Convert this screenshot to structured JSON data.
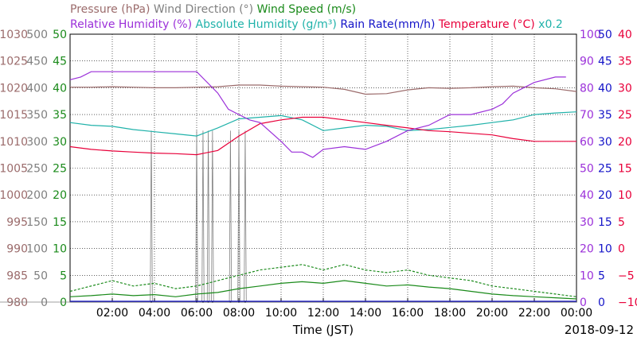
{
  "chart_data": {
    "type": "line",
    "date": "2018-09-12",
    "xlabel": "Time (JST)",
    "x_ticks": [
      "02:00",
      "04:00",
      "06:00",
      "08:00",
      "10:00",
      "12:00",
      "14:00",
      "16:00",
      "18:00",
      "20:00",
      "22:00",
      "00:00"
    ],
    "xlim_hours": [
      0,
      24
    ],
    "grid": true,
    "legend_line1": [
      {
        "label": "Pressure (hPa)",
        "color": "#9b6b6b"
      },
      {
        "label": "Wind Direction (°)",
        "color": "#808080"
      },
      {
        "label": "Wind Speed (m/s)",
        "color": "#1a8a1a"
      }
    ],
    "legend_line2": [
      {
        "label": "Relative Humidity (%)",
        "color": "#9b30d9"
      },
      {
        "label": "Absolute Humidity (g/m³)",
        "color": "#20b2aa"
      },
      {
        "label": "Rain Rate(mm/h)",
        "color": "#1414c8"
      },
      {
        "label": "Temperature (°C)",
        "color": "#e8003a"
      },
      {
        "label": "x0.2",
        "color": "#20b2aa"
      }
    ],
    "axes": [
      {
        "name": "pressure",
        "color": "#9b6b6b",
        "side": "left",
        "ticks": [
          "980",
          "985",
          "990",
          "995",
          "1000",
          "1005",
          "1010",
          "1015",
          "1020",
          "1025",
          "1030"
        ]
      },
      {
        "name": "wind-direction",
        "color": "#808080",
        "side": "left",
        "ticks": [
          "0",
          "50",
          "100",
          "150",
          "200",
          "250",
          "300",
          "350",
          "400",
          "450",
          "500"
        ]
      },
      {
        "name": "wind-speed",
        "color": "#1a8a1a",
        "side": "left",
        "ticks": [
          "0",
          "5",
          "10",
          "15",
          "20",
          "25",
          "30",
          "35",
          "40",
          "45",
          "50"
        ]
      },
      {
        "name": "relative-humidity",
        "color": "#9b30d9",
        "side": "right",
        "ticks": [
          "0",
          "10",
          "20",
          "30",
          "40",
          "50",
          "60",
          "70",
          "80",
          "90",
          "100"
        ]
      },
      {
        "name": "absolute-humidity",
        "color": "#1414c8",
        "side": "right",
        "ticks": [
          "0",
          "5",
          "10",
          "15",
          "20",
          "25",
          "30",
          "35",
          "40",
          "45",
          "50"
        ]
      },
      {
        "name": "temperature",
        "color": "#e8003a",
        "side": "right",
        "ticks": [
          "−10",
          "−5",
          "0",
          "5",
          "10",
          "15",
          "20",
          "25",
          "30",
          "35",
          "40"
        ]
      }
    ],
    "series": [
      {
        "name": "Pressure (hPa)",
        "color": "#9b6b6b",
        "axis": "wd",
        "x": [
          0,
          1,
          2,
          3,
          4,
          5,
          6,
          7,
          8,
          9,
          10,
          11,
          12,
          13,
          14,
          15,
          16,
          17,
          18,
          19,
          20,
          21,
          22,
          23,
          24
        ],
        "y": [
          401,
          401,
          402,
          401,
          400,
          400,
          401,
          402,
          405,
          405,
          403,
          402,
          401,
          397,
          388,
          389,
          396,
          400,
          399,
          400,
          402,
          403,
          400,
          398,
          393
        ]
      },
      {
        "name": "Wind Speed (m/s)",
        "color": "#1a8a1a",
        "axis": "wd",
        "dash": true,
        "x": [
          0,
          1,
          2,
          3,
          4,
          5,
          6,
          7,
          8,
          9,
          10,
          11,
          12,
          13,
          14,
          15,
          16,
          17,
          18,
          19,
          20,
          21,
          22,
          23,
          24
        ],
        "y": [
          20,
          30,
          40,
          30,
          35,
          25,
          30,
          40,
          50,
          60,
          65,
          70,
          60,
          70,
          60,
          55,
          60,
          50,
          45,
          40,
          30,
          25,
          20,
          15,
          10
        ]
      },
      {
        "name": "Wind Speed avg (m/s)",
        "color": "#1a8a1a",
        "axis": "wd",
        "x": [
          0,
          1,
          2,
          3,
          4,
          5,
          6,
          7,
          8,
          9,
          10,
          11,
          12,
          13,
          14,
          15,
          16,
          17,
          18,
          19,
          20,
          21,
          22,
          23,
          24
        ],
        "y": [
          10,
          12,
          15,
          12,
          14,
          10,
          15,
          18,
          25,
          30,
          35,
          38,
          35,
          40,
          35,
          30,
          32,
          28,
          25,
          20,
          15,
          12,
          10,
          8,
          6
        ]
      },
      {
        "name": "Absolute Humidity (g/m³)",
        "color": "#20b2aa",
        "axis": "wd",
        "x": [
          0,
          1,
          2,
          3,
          4,
          5,
          6,
          7,
          8,
          9,
          10,
          11,
          12,
          13,
          14,
          15,
          16,
          17,
          18,
          19,
          20,
          21,
          22,
          23,
          24
        ],
        "y": [
          335,
          330,
          328,
          322,
          318,
          314,
          310,
          325,
          342,
          345,
          348,
          340,
          320,
          325,
          330,
          328,
          320,
          322,
          326,
          330,
          335,
          340,
          350,
          353,
          355
        ]
      },
      {
        "name": "Temperature (°C)",
        "color": "#e8003a",
        "axis": "wd",
        "x": [
          0,
          1,
          2,
          3,
          4,
          5,
          6,
          7,
          8,
          9,
          10,
          11,
          12,
          13,
          14,
          15,
          16,
          17,
          18,
          19,
          20,
          21,
          22,
          23,
          24
        ],
        "y": [
          290,
          285,
          282,
          280,
          278,
          277,
          275,
          283,
          310,
          333,
          340,
          345,
          345,
          340,
          335,
          330,
          325,
          320,
          318,
          315,
          312,
          305,
          300,
          300,
          300
        ]
      },
      {
        "name": "Relative Humidity (%)",
        "color": "#9b30d9",
        "axis": "rh",
        "x": [
          0,
          0.5,
          1,
          2,
          3,
          4,
          5,
          6,
          7,
          7.5,
          8,
          8.5,
          9,
          10,
          10.5,
          11,
          11.5,
          12,
          13,
          14,
          15,
          16,
          17,
          18,
          19,
          20,
          20.5,
          21,
          22,
          23,
          23.5
        ],
        "y": [
          83,
          84,
          86,
          86,
          86,
          86,
          86,
          86,
          78,
          72,
          70,
          68,
          67,
          60,
          56,
          56,
          54,
          57,
          58,
          57,
          60,
          64,
          66,
          70,
          70,
          72,
          74,
          78,
          82,
          84,
          84
        ]
      }
    ],
    "wind_direction_spikes_hours": [
      3.85,
      6.0,
      6.3,
      6.55,
      6.75,
      7.6,
      8.0,
      8.3
    ]
  }
}
